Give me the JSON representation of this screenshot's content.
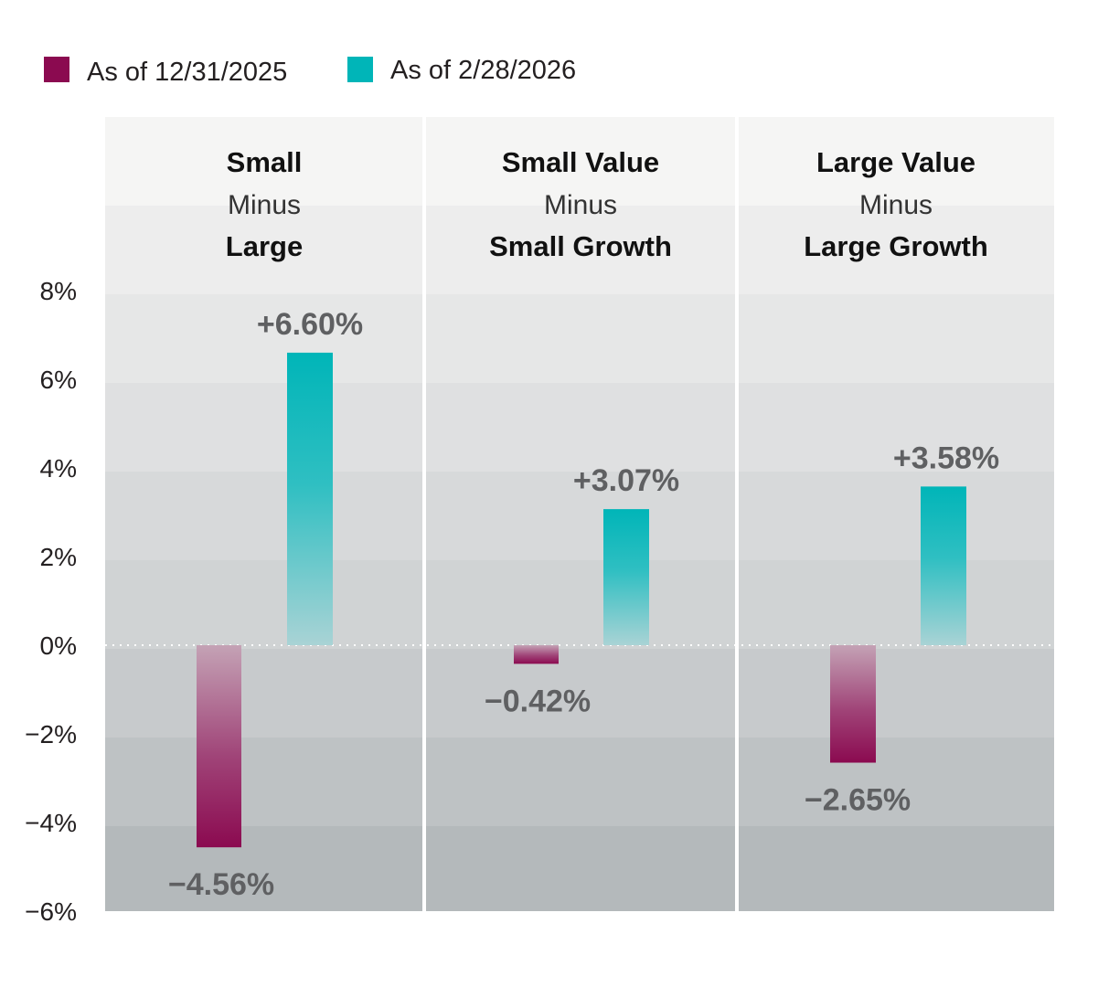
{
  "chart_data": {
    "type": "bar",
    "legend": [
      {
        "name": "As of 12/31/2025",
        "color": "#8b0a50"
      },
      {
        "name": "As of 2/28/2026",
        "color": "#00b5b8"
      }
    ],
    "panels": [
      {
        "title_top": "Small",
        "title_mid": "Minus",
        "title_bottom": "Large",
        "values": [
          -4.56,
          6.6
        ],
        "labels": [
          "−4.56%",
          "+6.60%"
        ]
      },
      {
        "title_top": "Small Value",
        "title_mid": "Minus",
        "title_bottom": "Small Growth",
        "values": [
          -0.42,
          3.07
        ],
        "labels": [
          "−0.42%",
          "+3.07%"
        ]
      },
      {
        "title_top": "Large Value",
        "title_mid": "Minus",
        "title_bottom": "Large Growth",
        "values": [
          -2.65,
          3.58
        ],
        "labels": [
          "−2.65%",
          "+3.58%"
        ]
      }
    ],
    "y_ticks": [
      8,
      6,
      4,
      2,
      0,
      -2,
      -4,
      -6
    ],
    "y_tick_labels": [
      "8%",
      "6%",
      "4%",
      "2%",
      "0%",
      "−2%",
      "−4%",
      "−6%"
    ],
    "ylim": [
      -6,
      12
    ],
    "zero_line": "dotted"
  }
}
